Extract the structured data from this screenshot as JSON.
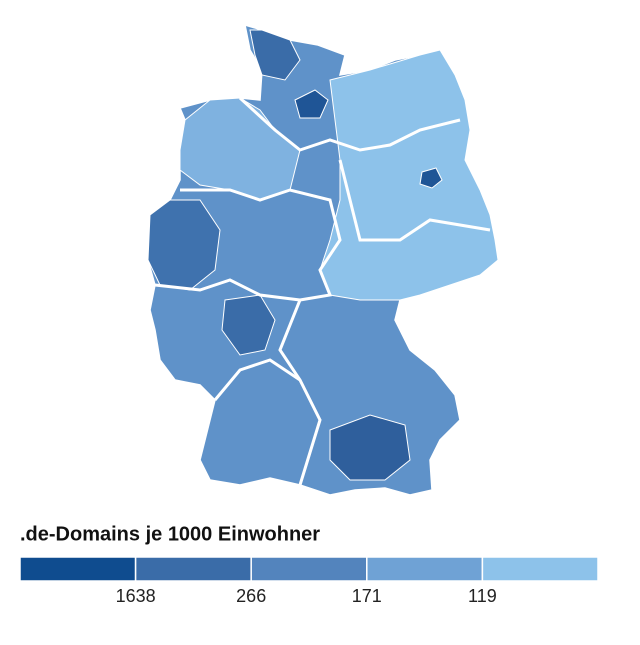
{
  "title": ".de-Domains je 1000 Einwohner",
  "legend": {
    "colors": [
      "#0f4c8f",
      "#3a6ca8",
      "#5384bd",
      "#6fa2d5",
      "#8dc2ea"
    ],
    "breaks": [
      1638,
      266,
      171,
      119
    ]
  }
}
